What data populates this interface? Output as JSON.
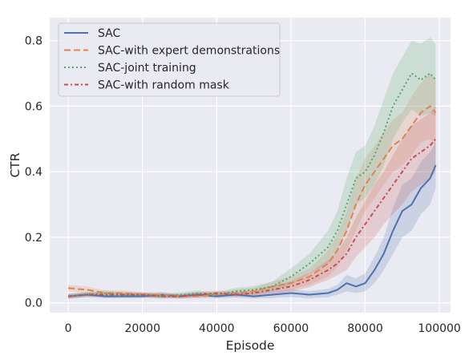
{
  "chart_data": {
    "type": "line",
    "xlabel": "Episode",
    "ylabel": "CTR",
    "xlim": [
      -5000,
      103000
    ],
    "ylim": [
      -0.03,
      0.87
    ],
    "xticks": [
      0,
      20000,
      40000,
      60000,
      80000,
      100000
    ],
    "yticks": [
      0.0,
      0.2,
      0.4,
      0.6,
      0.8
    ],
    "xtick_labels": [
      "0",
      "20000",
      "40000",
      "60000",
      "80000",
      "100000"
    ],
    "ytick_labels": [
      "0.0",
      "0.2",
      "0.4",
      "0.6",
      "0.8"
    ],
    "grid": true,
    "legend_position": "upper-left",
    "background": "#eaeaf2",
    "x": [
      0,
      5000,
      10000,
      15000,
      20000,
      25000,
      30000,
      35000,
      40000,
      45000,
      50000,
      55000,
      60000,
      65000,
      70000,
      72500,
      75000,
      77500,
      80000,
      82500,
      85000,
      87500,
      90000,
      92500,
      95000,
      97500,
      99000
    ],
    "series": [
      {
        "name": "SAC",
        "color": "#4c72b0",
        "dash": "",
        "values": [
          0.02,
          0.025,
          0.02,
          0.02,
          0.02,
          0.025,
          0.02,
          0.025,
          0.02,
          0.025,
          0.02,
          0.025,
          0.03,
          0.025,
          0.03,
          0.04,
          0.06,
          0.05,
          0.06,
          0.1,
          0.15,
          0.22,
          0.28,
          0.3,
          0.35,
          0.38,
          0.42
        ],
        "lower": [
          0.012,
          0.018,
          0.014,
          0.014,
          0.014,
          0.017,
          0.014,
          0.017,
          0.014,
          0.016,
          0.013,
          0.015,
          0.018,
          0.014,
          0.017,
          0.025,
          0.035,
          0.03,
          0.035,
          0.06,
          0.1,
          0.15,
          0.2,
          0.22,
          0.27,
          0.3,
          0.35
        ],
        "upper": [
          0.028,
          0.032,
          0.026,
          0.026,
          0.026,
          0.033,
          0.026,
          0.033,
          0.026,
          0.034,
          0.027,
          0.035,
          0.042,
          0.036,
          0.043,
          0.055,
          0.085,
          0.075,
          0.09,
          0.14,
          0.2,
          0.29,
          0.36,
          0.38,
          0.43,
          0.46,
          0.49
        ]
      },
      {
        "name": "SAC-with expert demonstrations",
        "color": "#dd8452",
        "dash": "8,4",
        "values": [
          0.045,
          0.04,
          0.03,
          0.03,
          0.025,
          0.025,
          0.02,
          0.02,
          0.025,
          0.03,
          0.035,
          0.05,
          0.06,
          0.08,
          0.12,
          0.16,
          0.22,
          0.3,
          0.36,
          0.4,
          0.44,
          0.48,
          0.5,
          0.54,
          0.58,
          0.6,
          0.58
        ],
        "lower": [
          0.035,
          0.03,
          0.022,
          0.022,
          0.018,
          0.018,
          0.013,
          0.013,
          0.017,
          0.02,
          0.024,
          0.035,
          0.04,
          0.055,
          0.08,
          0.11,
          0.16,
          0.22,
          0.28,
          0.32,
          0.36,
          0.4,
          0.42,
          0.45,
          0.49,
          0.5,
          0.48
        ],
        "upper": [
          0.055,
          0.05,
          0.038,
          0.038,
          0.032,
          0.032,
          0.027,
          0.027,
          0.033,
          0.04,
          0.046,
          0.065,
          0.08,
          0.105,
          0.16,
          0.21,
          0.28,
          0.38,
          0.44,
          0.48,
          0.52,
          0.56,
          0.58,
          0.63,
          0.67,
          0.7,
          0.68
        ]
      },
      {
        "name": "SAC-joint training",
        "color": "#55a868",
        "dash": "2,3",
        "values": [
          0.02,
          0.025,
          0.03,
          0.025,
          0.025,
          0.02,
          0.025,
          0.03,
          0.025,
          0.035,
          0.04,
          0.05,
          0.08,
          0.12,
          0.17,
          0.22,
          0.3,
          0.38,
          0.4,
          0.45,
          0.52,
          0.6,
          0.65,
          0.7,
          0.68,
          0.7,
          0.68
        ],
        "lower": [
          0.013,
          0.018,
          0.022,
          0.018,
          0.018,
          0.013,
          0.018,
          0.022,
          0.018,
          0.025,
          0.028,
          0.035,
          0.055,
          0.09,
          0.12,
          0.16,
          0.22,
          0.3,
          0.32,
          0.36,
          0.42,
          0.5,
          0.55,
          0.59,
          0.57,
          0.58,
          0.57
        ],
        "upper": [
          0.027,
          0.032,
          0.038,
          0.032,
          0.032,
          0.027,
          0.032,
          0.038,
          0.032,
          0.045,
          0.052,
          0.065,
          0.105,
          0.15,
          0.22,
          0.28,
          0.38,
          0.46,
          0.48,
          0.54,
          0.62,
          0.7,
          0.75,
          0.8,
          0.79,
          0.81,
          0.79
        ]
      },
      {
        "name": "SAC-with random mask",
        "color": "#c44e52",
        "dash": "5,3,2,3",
        "values": [
          0.02,
          0.025,
          0.025,
          0.025,
          0.025,
          0.02,
          0.02,
          0.025,
          0.03,
          0.025,
          0.03,
          0.04,
          0.05,
          0.07,
          0.1,
          0.12,
          0.15,
          0.2,
          0.24,
          0.28,
          0.32,
          0.36,
          0.4,
          0.44,
          0.46,
          0.48,
          0.5
        ],
        "lower": [
          0.013,
          0.018,
          0.018,
          0.018,
          0.018,
          0.013,
          0.013,
          0.018,
          0.022,
          0.018,
          0.022,
          0.028,
          0.034,
          0.048,
          0.07,
          0.085,
          0.1,
          0.14,
          0.17,
          0.2,
          0.24,
          0.27,
          0.3,
          0.34,
          0.36,
          0.38,
          0.4
        ],
        "upper": [
          0.027,
          0.032,
          0.032,
          0.032,
          0.032,
          0.027,
          0.027,
          0.032,
          0.038,
          0.032,
          0.038,
          0.052,
          0.066,
          0.092,
          0.13,
          0.155,
          0.2,
          0.26,
          0.31,
          0.36,
          0.4,
          0.45,
          0.5,
          0.54,
          0.56,
          0.58,
          0.6
        ]
      }
    ]
  }
}
